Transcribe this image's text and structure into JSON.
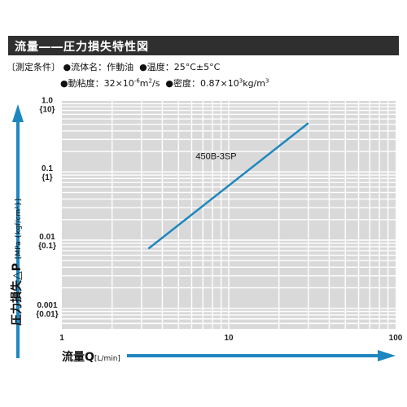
{
  "title": "流量――圧力損失特性図",
  "conditions": {
    "label": "〔測定条件〕",
    "fluid_label": "●流体名：作動油",
    "temp_label": "●温度：25°C±5°C",
    "viscosity_label": "●動粘度：32×10",
    "viscosity_exp1": "-6",
    "viscosity_mid": "m",
    "viscosity_exp2": "2",
    "viscosity_unit": "/s",
    "density_label": "●密度：0.87×10",
    "density_exp1": "3",
    "density_unit": "kg/m",
    "density_exp2": "3"
  },
  "axes": {
    "y_label_main": "圧力損失△P",
    "y_label_unit": "[MPa {kgf/cm²}]",
    "x_label_main": "流量Q",
    "x_label_unit": "[L/min]"
  },
  "colors": {
    "axis_arrow": "#1e87bf",
    "series": "#1e87bf",
    "grid_bg": "#d9d9d9",
    "grid_line": "#ffffff"
  },
  "chart_data": {
    "type": "line",
    "x_scale": "log",
    "y_scale": "log",
    "xlim": [
      1,
      100
    ],
    "ylim": [
      0.0005,
      1.1
    ],
    "grid": true,
    "x_ticks": [
      {
        "value": 1,
        "label": "1"
      },
      {
        "value": 10,
        "label": "10"
      },
      {
        "value": 100,
        "label": "100"
      }
    ],
    "y_ticks": [
      {
        "value": 1,
        "label": "1.0",
        "sublabel": "{10}"
      },
      {
        "value": 0.1,
        "label": "0.1",
        "sublabel": "{1}"
      },
      {
        "value": 0.01,
        "label": "0.01",
        "sublabel": "{0.1}"
      },
      {
        "value": 0.001,
        "label": "0.001",
        "sublabel": "{0.01}"
      }
    ],
    "series": [
      {
        "name": "450B-3SP",
        "x": [
          3.3,
          30
        ],
        "y": [
          0.0075,
          0.52
        ]
      }
    ]
  }
}
